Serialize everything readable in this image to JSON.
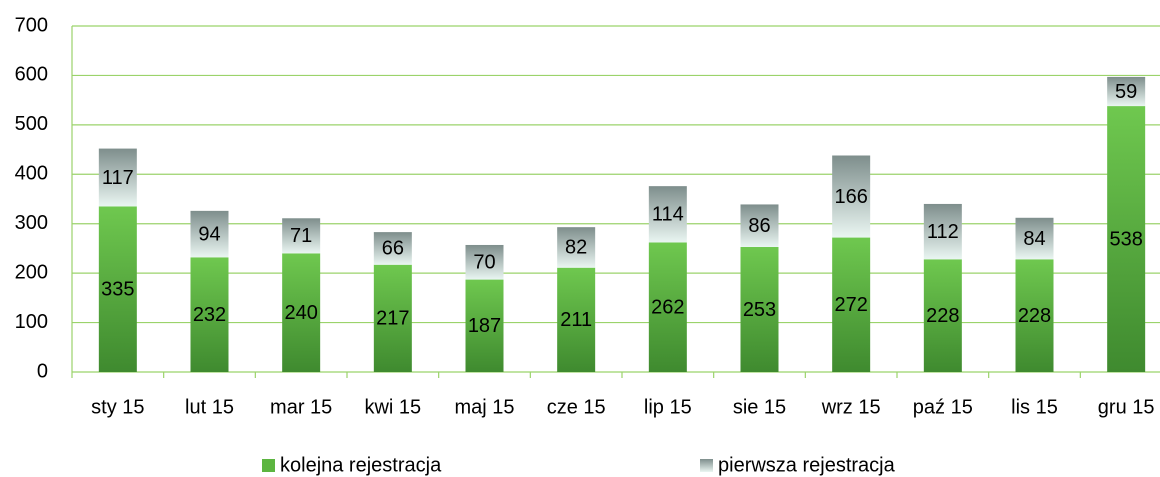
{
  "chart_data": {
    "type": "stacked_bar",
    "categories": [
      "sty 15",
      "lut 15",
      "mar 15",
      "kwi 15",
      "maj 15",
      "cze 15",
      "lip 15",
      "sie 15",
      "wrz 15",
      "paź 15",
      "lis 15",
      "gru 15"
    ],
    "series": [
      {
        "name": "kolejna rejestracja",
        "color": "#5cb540",
        "values": [
          335,
          232,
          240,
          217,
          187,
          211,
          262,
          253,
          272,
          228,
          228,
          538
        ]
      },
      {
        "name": "pierwsza rejestracja",
        "color": "#a3b8b6",
        "values": [
          117,
          94,
          71,
          66,
          70,
          82,
          114,
          86,
          166,
          112,
          84,
          59
        ]
      }
    ],
    "ylim": [
      0,
      700
    ],
    "yticks": [
      0,
      100,
      200,
      300,
      400,
      500,
      600,
      700
    ],
    "grid": true,
    "legend": "bottom"
  }
}
